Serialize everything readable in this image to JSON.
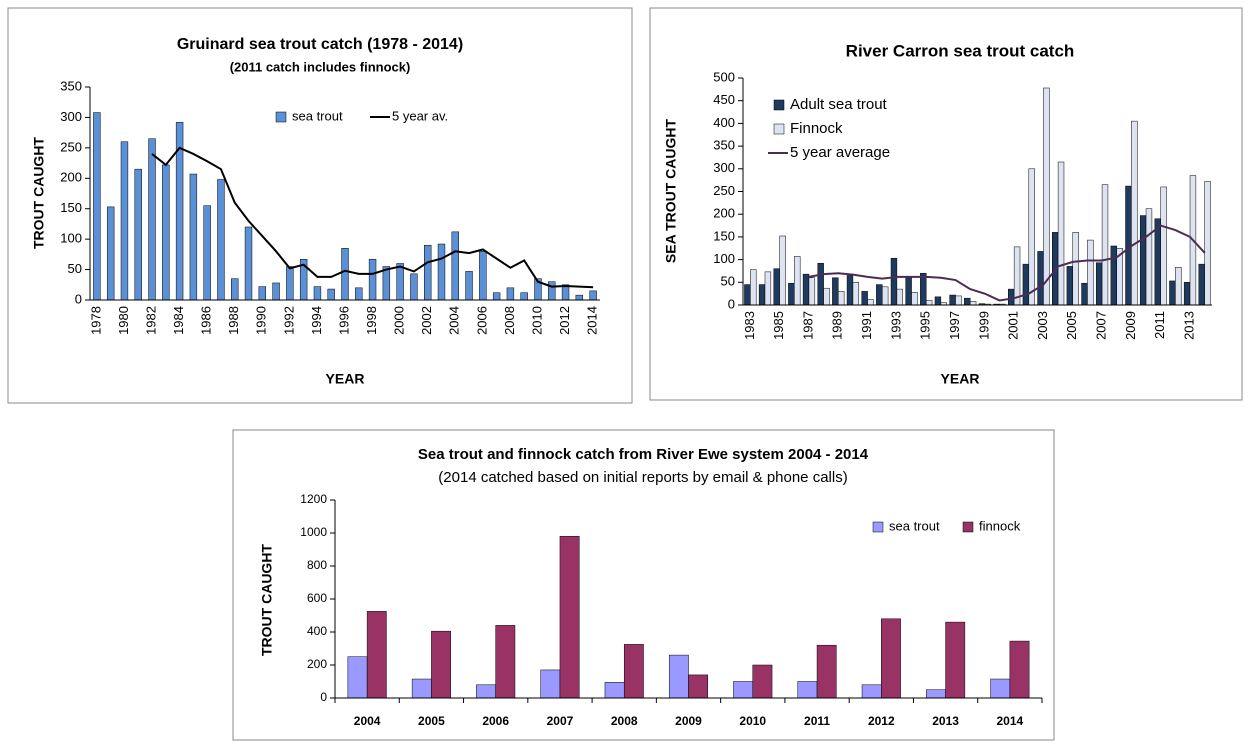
{
  "chart_data": [
    {
      "type": "bar",
      "title": "Gruinard sea trout catch (1978 - 2014)",
      "subtitle": "(2011 catch includes finnock)",
      "x_label": "YEAR",
      "y_label": "TROUT CAUGHT",
      "categories": [
        "1978",
        null,
        "1980",
        null,
        "1982",
        null,
        "1984",
        null,
        "1986",
        null,
        "1988",
        null,
        "1990",
        null,
        "1992",
        null,
        "1994",
        null,
        "1996",
        null,
        "1998",
        null,
        "2000",
        null,
        "2002",
        null,
        "2004",
        null,
        "2006",
        null,
        "2008",
        null,
        "2010",
        null,
        "2012",
        null,
        "2014"
      ],
      "series": [
        {
          "name": "sea trout",
          "color": "#5b8fd6",
          "values": [
            308,
            153,
            260,
            215,
            265,
            222,
            292,
            207,
            155,
            198,
            35,
            120,
            22,
            28,
            55,
            67,
            22,
            18,
            85,
            20,
            67,
            55,
            60,
            43,
            90,
            92,
            112,
            47,
            80,
            12,
            20,
            12,
            35,
            30,
            25,
            8,
            15
          ]
        },
        {
          "name": "5 year av.",
          "type": "line",
          "color": "#000000",
          "values": [
            null,
            null,
            null,
            null,
            240,
            222,
            250,
            240,
            228,
            215,
            160,
            130,
            105,
            80,
            52,
            58,
            38,
            38,
            48,
            43,
            43,
            50,
            55,
            47,
            62,
            68,
            80,
            77,
            83,
            68,
            53,
            65,
            30,
            22,
            23,
            22,
            21
          ]
        }
      ],
      "ylim": [
        0,
        350
      ],
      "yticks": [
        0,
        50,
        100,
        150,
        200,
        250,
        300,
        350
      ],
      "legend": "top-right"
    },
    {
      "type": "bar",
      "title": "River Carron sea trout catch",
      "x_label": "YEAR",
      "y_label": "SEA TROUT CAUGHT",
      "categories": [
        "1983",
        null,
        "1985",
        null,
        "1987",
        null,
        "1989",
        null,
        "1991",
        null,
        "1993",
        null,
        "1995",
        null,
        "1997",
        null,
        "1999",
        null,
        "2001",
        null,
        "2003",
        null,
        "2005",
        null,
        "2007",
        null,
        "2009",
        null,
        "2011",
        null,
        "2013",
        null
      ],
      "series": [
        {
          "name": "Adult sea trout",
          "color": "#1f3a5f",
          "values": [
            45,
            45,
            80,
            48,
            68,
            92,
            60,
            65,
            30,
            45,
            103,
            60,
            70,
            18,
            22,
            15,
            3,
            2,
            35,
            90,
            118,
            160,
            85,
            48,
            93,
            130,
            262,
            197,
            190,
            53,
            50,
            90
          ]
        },
        {
          "name": "Finnock",
          "color": "#dde3f0",
          "values": [
            78,
            73,
            152,
            107,
            60,
            37,
            30,
            50,
            12,
            40,
            35,
            28,
            10,
            5,
            20,
            8,
            2,
            2,
            128,
            300,
            478,
            315,
            160,
            143,
            265,
            125,
            405,
            212,
            260,
            83,
            285,
            272
          ]
        },
        {
          "name": "5 year average",
          "type": "line",
          "color": "#4b2d52",
          "values": [
            null,
            null,
            null,
            null,
            62,
            68,
            70,
            67,
            62,
            58,
            62,
            62,
            62,
            60,
            55,
            35,
            25,
            10,
            15,
            25,
            45,
            85,
            95,
            98,
            98,
            105,
            130,
            150,
            175,
            165,
            150,
            115
          ]
        }
      ],
      "ylim": [
        0,
        500
      ],
      "yticks": [
        0,
        50,
        100,
        150,
        200,
        250,
        300,
        350,
        400,
        450,
        500
      ],
      "legend": "top-left"
    },
    {
      "type": "bar",
      "title": "Sea trout and finnock catch from River Ewe system 2004 - 2014",
      "subtitle": "(2014 catched based on initial reports by email & phone calls)",
      "y_label": "TROUT CAUGHT",
      "categories": [
        "2004",
        "2005",
        "2006",
        "2007",
        "2008",
        "2009",
        "2010",
        "2011",
        "2012",
        "2013",
        "2014"
      ],
      "series": [
        {
          "name": "sea trout",
          "color": "#9999ff",
          "values": [
            250,
            115,
            80,
            170,
            95,
            260,
            100,
            100,
            80,
            50,
            115
          ]
        },
        {
          "name": "finnock",
          "color": "#993366",
          "values": [
            525,
            405,
            440,
            980,
            325,
            140,
            200,
            320,
            480,
            460,
            345
          ]
        }
      ],
      "ylim": [
        0,
        1200
      ],
      "yticks": [
        0,
        200,
        400,
        600,
        800,
        1000,
        1200
      ],
      "legend": "top-right"
    }
  ]
}
